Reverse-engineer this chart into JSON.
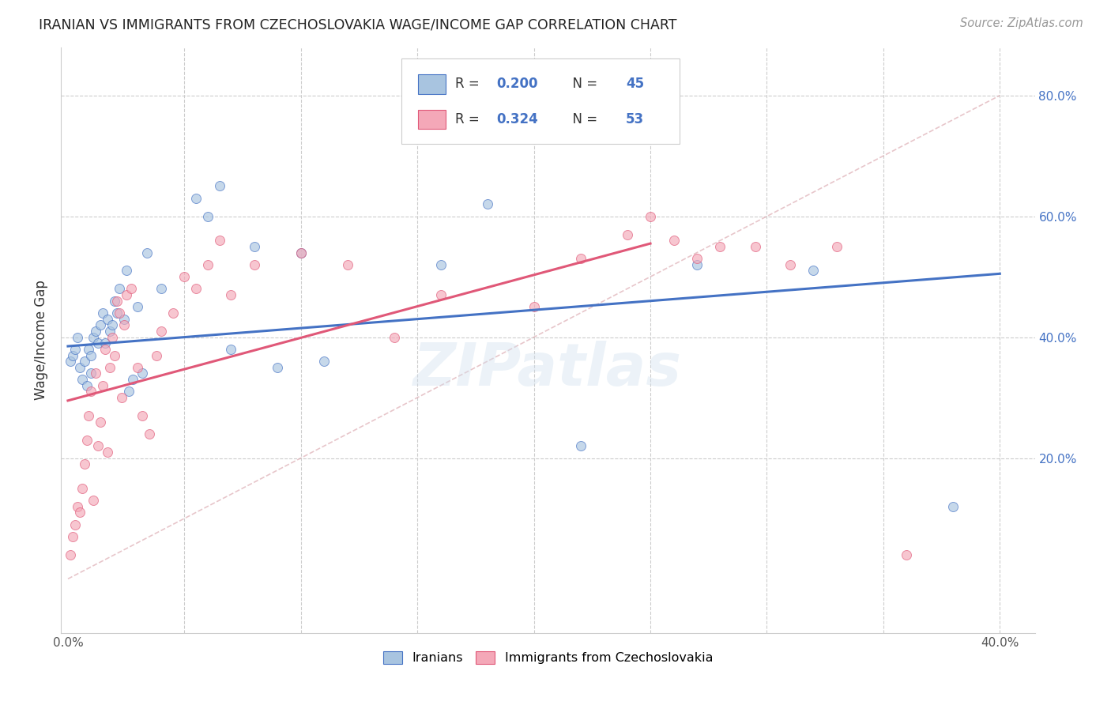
{
  "title": "IRANIAN VS IMMIGRANTS FROM CZECHOSLOVAKIA WAGE/INCOME GAP CORRELATION CHART",
  "source": "Source: ZipAtlas.com",
  "ylabel": "Wage/Income Gap",
  "watermark": "ZIPatlas",
  "xlim": [
    -0.003,
    0.415
  ],
  "ylim": [
    -0.09,
    0.88
  ],
  "blue_R": "0.200",
  "blue_N": "45",
  "pink_R": "0.324",
  "pink_N": "53",
  "blue_color": "#a8c4e0",
  "pink_color": "#f4a8b8",
  "blue_line_color": "#4472c4",
  "pink_line_color": "#e05878",
  "dot_size": 75,
  "dot_alpha": 0.65,
  "iranians_x": [
    0.001,
    0.002,
    0.003,
    0.004,
    0.005,
    0.006,
    0.007,
    0.008,
    0.009,
    0.01,
    0.01,
    0.011,
    0.012,
    0.013,
    0.014,
    0.015,
    0.016,
    0.017,
    0.018,
    0.019,
    0.02,
    0.021,
    0.022,
    0.024,
    0.025,
    0.026,
    0.028,
    0.03,
    0.032,
    0.034,
    0.04,
    0.055,
    0.06,
    0.065,
    0.07,
    0.08,
    0.09,
    0.1,
    0.11,
    0.16,
    0.18,
    0.22,
    0.27,
    0.32,
    0.38
  ],
  "iranians_y": [
    0.36,
    0.37,
    0.38,
    0.4,
    0.35,
    0.33,
    0.36,
    0.32,
    0.38,
    0.37,
    0.34,
    0.4,
    0.41,
    0.39,
    0.42,
    0.44,
    0.39,
    0.43,
    0.41,
    0.42,
    0.46,
    0.44,
    0.48,
    0.43,
    0.51,
    0.31,
    0.33,
    0.45,
    0.34,
    0.54,
    0.48,
    0.63,
    0.6,
    0.65,
    0.38,
    0.55,
    0.35,
    0.54,
    0.36,
    0.52,
    0.62,
    0.22,
    0.52,
    0.51,
    0.12
  ],
  "czech_x": [
    0.001,
    0.002,
    0.003,
    0.004,
    0.005,
    0.006,
    0.007,
    0.008,
    0.009,
    0.01,
    0.011,
    0.012,
    0.013,
    0.014,
    0.015,
    0.016,
    0.017,
    0.018,
    0.019,
    0.02,
    0.021,
    0.022,
    0.023,
    0.024,
    0.025,
    0.027,
    0.03,
    0.032,
    0.035,
    0.038,
    0.04,
    0.045,
    0.05,
    0.055,
    0.06,
    0.065,
    0.07,
    0.08,
    0.1,
    0.12,
    0.14,
    0.16,
    0.2,
    0.22,
    0.24,
    0.25,
    0.26,
    0.27,
    0.28,
    0.295,
    0.31,
    0.33,
    0.36
  ],
  "czech_y": [
    0.04,
    0.07,
    0.09,
    0.12,
    0.11,
    0.15,
    0.19,
    0.23,
    0.27,
    0.31,
    0.13,
    0.34,
    0.22,
    0.26,
    0.32,
    0.38,
    0.21,
    0.35,
    0.4,
    0.37,
    0.46,
    0.44,
    0.3,
    0.42,
    0.47,
    0.48,
    0.35,
    0.27,
    0.24,
    0.37,
    0.41,
    0.44,
    0.5,
    0.48,
    0.52,
    0.56,
    0.47,
    0.52,
    0.54,
    0.52,
    0.4,
    0.47,
    0.45,
    0.53,
    0.57,
    0.6,
    0.56,
    0.53,
    0.55,
    0.55,
    0.52,
    0.55,
    0.04
  ],
  "blue_line_x0": 0.0,
  "blue_line_y0": 0.385,
  "blue_line_x1": 0.4,
  "blue_line_y1": 0.505,
  "pink_line_x0": 0.0,
  "pink_line_y0": 0.295,
  "pink_line_x1": 0.25,
  "pink_line_y1": 0.555
}
